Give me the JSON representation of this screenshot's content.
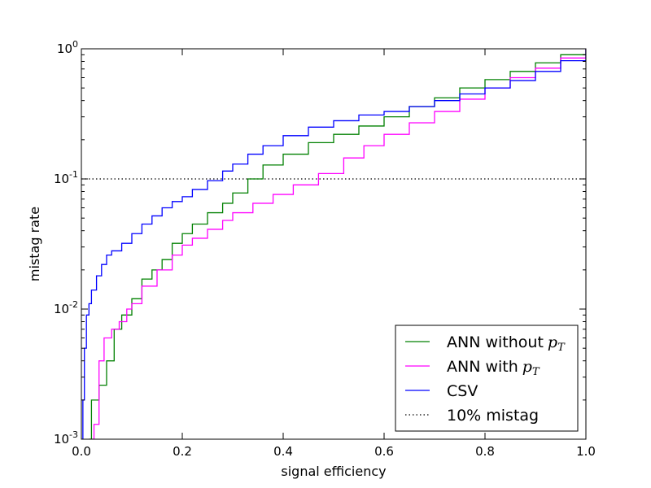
{
  "chart_data": {
    "type": "line",
    "title": "",
    "xlabel": "signal efficiency",
    "ylabel": "mistag rate",
    "xlim": [
      0.0,
      1.0
    ],
    "ylim": [
      0.001,
      1.0
    ],
    "yscale": "log",
    "grid": false,
    "legend_position": "bottom-right",
    "x_ticks": [
      {
        "value": 0.0,
        "label": "0.0"
      },
      {
        "value": 0.2,
        "label": "0.2"
      },
      {
        "value": 0.4,
        "label": "0.4"
      },
      {
        "value": 0.6,
        "label": "0.6"
      },
      {
        "value": 0.8,
        "label": "0.8"
      },
      {
        "value": 1.0,
        "label": "1.0"
      }
    ],
    "y_ticks": [
      {
        "value": 0.001,
        "base": "10",
        "exp": "-3"
      },
      {
        "value": 0.01,
        "base": "10",
        "exp": "-2"
      },
      {
        "value": 0.1,
        "base": "10",
        "exp": "-1"
      },
      {
        "value": 1.0,
        "base": "10",
        "exp": "0"
      }
    ],
    "series": [
      {
        "name": "ANN without",
        "name_math": "p",
        "name_sub": "T",
        "color": "#008000",
        "style": "step",
        "x": [
          0.015,
          0.02,
          0.035,
          0.05,
          0.065,
          0.08,
          0.1,
          0.12,
          0.14,
          0.16,
          0.18,
          0.2,
          0.22,
          0.25,
          0.28,
          0.3,
          0.33,
          0.36,
          0.4,
          0.45,
          0.5,
          0.55,
          0.6,
          0.65,
          0.7,
          0.75,
          0.8,
          0.85,
          0.9,
          0.95,
          1.0
        ],
        "y": [
          0.001,
          0.002,
          0.0026,
          0.004,
          0.007,
          0.009,
          0.012,
          0.017,
          0.02,
          0.024,
          0.032,
          0.038,
          0.045,
          0.055,
          0.065,
          0.078,
          0.1,
          0.128,
          0.155,
          0.19,
          0.22,
          0.255,
          0.3,
          0.36,
          0.42,
          0.5,
          0.58,
          0.67,
          0.78,
          0.9,
          1.0
        ]
      },
      {
        "name": "ANN with",
        "name_math": "p",
        "name_sub": "T",
        "color": "#ff00ff",
        "style": "step",
        "x": [
          0.02,
          0.025,
          0.035,
          0.045,
          0.06,
          0.075,
          0.09,
          0.1,
          0.12,
          0.15,
          0.18,
          0.2,
          0.22,
          0.25,
          0.28,
          0.3,
          0.34,
          0.38,
          0.42,
          0.47,
          0.52,
          0.56,
          0.6,
          0.65,
          0.7,
          0.75,
          0.8,
          0.85,
          0.9,
          0.95,
          1.0
        ],
        "y": [
          0.001,
          0.0013,
          0.004,
          0.006,
          0.007,
          0.008,
          0.01,
          0.011,
          0.015,
          0.02,
          0.026,
          0.031,
          0.035,
          0.041,
          0.048,
          0.055,
          0.065,
          0.076,
          0.09,
          0.11,
          0.145,
          0.18,
          0.22,
          0.27,
          0.33,
          0.41,
          0.5,
          0.6,
          0.71,
          0.85,
          1.0
        ]
      },
      {
        "name": "CSV",
        "name_math": "",
        "name_sub": "",
        "color": "#0000ff",
        "style": "step",
        "x": [
          0.003,
          0.006,
          0.01,
          0.015,
          0.02,
          0.03,
          0.04,
          0.05,
          0.06,
          0.08,
          0.1,
          0.12,
          0.14,
          0.16,
          0.18,
          0.2,
          0.22,
          0.25,
          0.28,
          0.3,
          0.33,
          0.36,
          0.4,
          0.45,
          0.5,
          0.55,
          0.6,
          0.65,
          0.7,
          0.75,
          0.8,
          0.85,
          0.9,
          0.95,
          1.0
        ],
        "y": [
          0.002,
          0.005,
          0.009,
          0.011,
          0.014,
          0.018,
          0.022,
          0.026,
          0.028,
          0.032,
          0.038,
          0.045,
          0.052,
          0.06,
          0.067,
          0.073,
          0.083,
          0.097,
          0.115,
          0.13,
          0.155,
          0.18,
          0.215,
          0.25,
          0.28,
          0.31,
          0.33,
          0.36,
          0.4,
          0.45,
          0.5,
          0.57,
          0.67,
          0.81,
          1.0
        ]
      }
    ],
    "reference_lines": [
      {
        "name": "10%",
        "label_rest": " mistag",
        "y": 0.1,
        "color": "#000000",
        "style": "dotted"
      }
    ]
  }
}
